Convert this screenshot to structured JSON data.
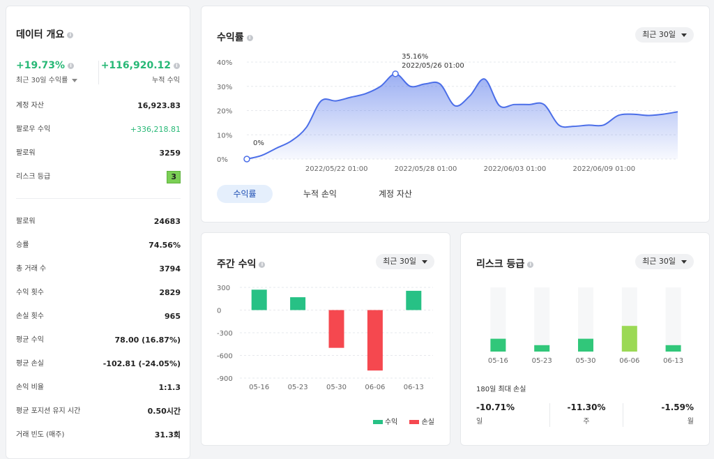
{
  "overview": {
    "title": "데이터 개요",
    "kpi_return": {
      "value": "+19.73%",
      "label": "최근 30일 수익률"
    },
    "kpi_pnl": {
      "value": "+116,920.12",
      "label": "누적 수익"
    },
    "rows_top": [
      {
        "label": "계정 자산",
        "value": "16,923.83"
      },
      {
        "label": "팔로우 수익",
        "value": "+336,218.81"
      },
      {
        "label": "팔로워",
        "value": "3259"
      },
      {
        "label": "리스크 등급",
        "value": "3"
      }
    ],
    "rows_bottom": [
      {
        "label": "팔로워",
        "value": "24683"
      },
      {
        "label": "승률",
        "value": "74.56%"
      },
      {
        "label": "총 거래 수",
        "value": "3794"
      },
      {
        "label": "수익 횟수",
        "value": "2829"
      },
      {
        "label": "손실 횟수",
        "value": "965"
      },
      {
        "label": "평균 수익",
        "value": "78.00 (16.87%)"
      },
      {
        "label": "평균 손실",
        "value": "-102.81 (-24.05%)"
      },
      {
        "label": "손익 비율",
        "value": "1:1.3"
      },
      {
        "label": "평균 포지션 유지 시간",
        "value": "0.50시간"
      },
      {
        "label": "거래 빈도 (매주)",
        "value": "31.3회"
      }
    ]
  },
  "return_card": {
    "title": "수익률",
    "period": "최근 30일",
    "tooltip": {
      "value": "35.16%",
      "date": "2022/05/26 01:00"
    },
    "start_label": "0%",
    "tabs": [
      "수익률",
      "누적 손익",
      "계정 자산"
    ],
    "active_tab": 0
  },
  "weekly_card": {
    "title": "주간 수익",
    "period": "최근 30일",
    "legend_profit": "수익",
    "legend_loss": "손실"
  },
  "risk_card": {
    "title": "리스크 등급",
    "period": "최근 30일",
    "mdd_title": "180일 최대 손실",
    "mdd": [
      {
        "value": "-10.71%",
        "label": "일"
      },
      {
        "value": "-11.30%",
        "label": "주"
      },
      {
        "value": "-1.59%",
        "label": "월"
      }
    ]
  },
  "colors": {
    "accent": "#4b6ee8",
    "profit": "#27c185",
    "loss": "#f5484f",
    "risk_fill": "#31c77a",
    "risk_current": "#9bd955"
  },
  "chart_data": [
    {
      "type": "area",
      "x": [
        "2022/05/16",
        "2022/05/17",
        "2022/05/18",
        "2022/05/19",
        "2022/05/20",
        "2022/05/21",
        "2022/05/22",
        "2022/05/23",
        "2022/05/24",
        "2022/05/25",
        "2022/05/26",
        "2022/05/27",
        "2022/05/28",
        "2022/05/29",
        "2022/05/30",
        "2022/05/31",
        "2022/06/01",
        "2022/06/02",
        "2022/06/03",
        "2022/06/04",
        "2022/06/05",
        "2022/06/06",
        "2022/06/07",
        "2022/06/08",
        "2022/06/09",
        "2022/06/10",
        "2022/06/11",
        "2022/06/12",
        "2022/06/13",
        "2022/06/14"
      ],
      "values": [
        0,
        1.5,
        4.5,
        7.5,
        13,
        24,
        24,
        25.5,
        27,
        30,
        35.16,
        30,
        31,
        31,
        22,
        26,
        33,
        22,
        22.5,
        22.5,
        22.5,
        14,
        13.5,
        14,
        14,
        18,
        18.5,
        18,
        18.5,
        19.5
      ],
      "x_ticks": [
        "2022/05/22 01:00",
        "2022/05/28 01:00",
        "2022/06/03 01:00",
        "2022/06/09 01:00"
      ],
      "y_ticks": [
        "0%",
        "10%",
        "20%",
        "30%",
        "40%"
      ],
      "ylim": [
        0,
        40
      ]
    },
    {
      "type": "bar",
      "categories": [
        "05-16",
        "05-23",
        "05-30",
        "06-06",
        "06-13"
      ],
      "values": [
        270,
        170,
        -500,
        -800,
        255
      ],
      "y_ticks": [
        "300",
        "0",
        "-300",
        "-600",
        "-900"
      ],
      "ylim": [
        -900,
        300
      ]
    },
    {
      "type": "bar",
      "categories": [
        "05-16",
        "05-23",
        "05-30",
        "06-06",
        "06-13"
      ],
      "values": [
        2,
        1,
        2,
        4,
        1
      ],
      "ylim": [
        0,
        10
      ]
    }
  ]
}
